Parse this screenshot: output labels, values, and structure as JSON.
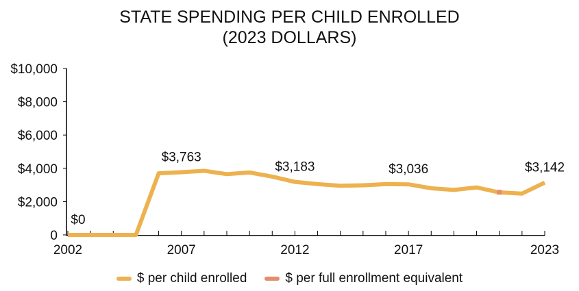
{
  "chart_data": {
    "type": "line",
    "title_lines": [
      "STATE SPENDING PER CHILD ENROLLED",
      "(2023 DOLLARS)"
    ],
    "xlabel": "",
    "ylabel": "",
    "xlim": [
      2002,
      2023
    ],
    "ylim": [
      0,
      10000
    ],
    "x_tick_labels": [
      "2002",
      "2007",
      "2012",
      "2017",
      "2023"
    ],
    "x_tick_values": [
      2002,
      2007,
      2012,
      2017,
      2023
    ],
    "y_tick_labels": [
      "0",
      "$2,000",
      "$4,000",
      "$6,000",
      "$8,000",
      "$10,000"
    ],
    "y_tick_values": [
      0,
      2000,
      4000,
      6000,
      8000,
      10000
    ],
    "grid": false,
    "legend_position": "bottom",
    "x": [
      2002,
      2003,
      2004,
      2005,
      2006,
      2007,
      2008,
      2009,
      2010,
      2011,
      2012,
      2013,
      2014,
      2015,
      2016,
      2017,
      2018,
      2019,
      2020,
      2021,
      2022,
      2023
    ],
    "series": [
      {
        "name": "$ per child enrolled",
        "color": "#EDB24F",
        "values": [
          0,
          0,
          0,
          0,
          3700,
          3763,
          3850,
          3650,
          3750,
          3500,
          3183,
          3050,
          2950,
          2980,
          3050,
          3036,
          2800,
          2700,
          2850,
          2550,
          2480,
          3142
        ]
      },
      {
        "name": "$ per full enrollment equivalent",
        "color": "#E58C6B",
        "values": [
          null,
          null,
          null,
          null,
          null,
          null,
          null,
          null,
          null,
          null,
          null,
          null,
          null,
          null,
          null,
          null,
          null,
          null,
          null,
          2560,
          null,
          null
        ]
      }
    ],
    "annotations": [
      {
        "x": 2002,
        "y": 0,
        "text": "$0"
      },
      {
        "x": 2007,
        "y": 3763,
        "text": "$3,763"
      },
      {
        "x": 2012,
        "y": 3183,
        "text": "$3,183"
      },
      {
        "x": 2017,
        "y": 3036,
        "text": "$3,036"
      },
      {
        "x": 2023,
        "y": 3142,
        "text": "$3,142"
      }
    ]
  }
}
